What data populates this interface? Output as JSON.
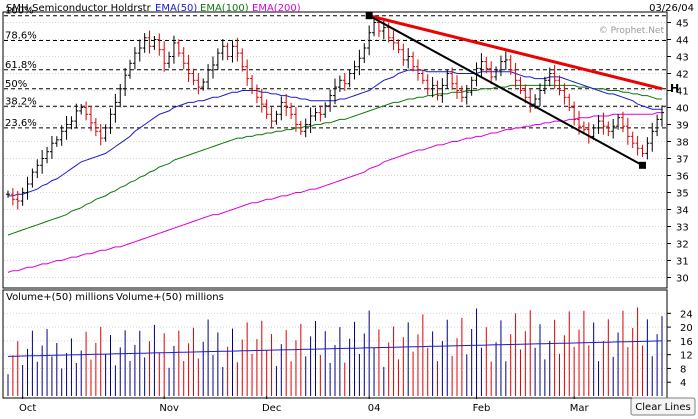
{
  "chart_data": {
    "type": "ohlc",
    "title": "SMH-Semiconductor Holdrstr",
    "date": "03/26/04",
    "watermark": "© Prophet.Net",
    "legend": [
      {
        "label": "EMA(50)",
        "color": "#1c1ccc"
      },
      {
        "label": "EMA(100)",
        "color": "#0a7a0a"
      },
      {
        "label": "EMA(200)",
        "color": "#dd00dd"
      }
    ],
    "price_axis": {
      "min": 29.5,
      "max": 45.5,
      "ticks": [
        30,
        31,
        32,
        33,
        34,
        35,
        36,
        37,
        38,
        39,
        40,
        41,
        42,
        43,
        44,
        45
      ]
    },
    "fib_levels": [
      {
        "label": "100%",
        "value": 45.4
      },
      {
        "label": "78.6%",
        "value": 43.94
      },
      {
        "label": "61.8%",
        "value": 42.22
      },
      {
        "label": "50%",
        "value": 41.1
      },
      {
        "label": "38.2%",
        "value": 40.07
      },
      {
        "label": "23.6%",
        "value": 38.8
      }
    ],
    "x_labels": [
      "Oct",
      "Nov",
      "Dec",
      "04",
      "Feb",
      "Mar"
    ],
    "x_label_bar_index": [
      3,
      32,
      53,
      74,
      96,
      116
    ],
    "close": [
      34.9,
      34.6,
      34.5,
      35.0,
      35.5,
      36.2,
      36.6,
      37.0,
      37.4,
      37.9,
      38.1,
      38.6,
      39.0,
      39.2,
      39.8,
      40.0,
      39.6,
      39.1,
      38.6,
      38.2,
      38.8,
      39.6,
      40.3,
      41.1,
      41.9,
      42.6,
      43.2,
      43.5,
      44.1,
      43.6,
      44.0,
      43.4,
      42.6,
      43.0,
      43.8,
      43.2,
      42.6,
      42.0,
      41.6,
      41.2,
      41.5,
      42.2,
      42.5,
      43.2,
      43.6,
      43.0,
      43.6,
      43.2,
      42.4,
      41.7,
      41.0,
      40.6,
      40.2,
      39.6,
      39.2,
      39.6,
      40.3,
      40.0,
      39.6,
      39.0,
      38.6,
      39.0,
      39.5,
      39.7,
      39.6,
      40.1,
      40.7,
      41.2,
      41.6,
      41.4,
      42.0,
      42.4,
      42.9,
      43.5,
      44.4,
      45.0,
      44.5,
      44.7,
      44.1,
      43.8,
      43.4,
      42.8,
      43.0,
      42.4,
      42.0,
      41.6,
      41.1,
      41.3,
      40.7,
      41.3,
      42.0,
      41.4,
      41.0,
      40.6,
      40.9,
      41.6,
      42.3,
      42.7,
      42.3,
      41.8,
      42.2,
      42.7,
      42.8,
      42.2,
      41.6,
      41.0,
      40.6,
      40.2,
      40.5,
      41.0,
      41.6,
      42.0,
      41.6,
      41.0,
      40.6,
      40.0,
      39.3,
      38.9,
      38.7,
      38.3,
      38.8,
      39.2,
      38.9,
      38.6,
      38.9,
      39.4,
      38.9,
      38.3,
      37.9,
      37.6,
      37.3,
      37.9,
      38.6,
      39.3,
      39.7
    ],
    "ema50": [
      34.8,
      34.8,
      34.9,
      34.9,
      35.0,
      35.1,
      35.2,
      35.4,
      35.5,
      35.7,
      35.8,
      36.0,
      36.2,
      36.4,
      36.6,
      36.8,
      36.9,
      37.0,
      37.1,
      37.2,
      37.3,
      37.5,
      37.7,
      37.9,
      38.1,
      38.3,
      38.6,
      38.8,
      39.0,
      39.2,
      39.4,
      39.6,
      39.7,
      39.8,
      40.0,
      40.1,
      40.2,
      40.3,
      40.3,
      40.4,
      40.4,
      40.5,
      40.6,
      40.6,
      40.7,
      40.8,
      40.9,
      40.9,
      41.0,
      41.0,
      41.0,
      41.0,
      40.9,
      40.9,
      40.8,
      40.8,
      40.7,
      40.7,
      40.6,
      40.6,
      40.5,
      40.5,
      40.4,
      40.4,
      40.4,
      40.4,
      40.4,
      40.4,
      40.5,
      40.5,
      40.6,
      40.7,
      40.8,
      40.9,
      41.0,
      41.2,
      41.4,
      41.6,
      41.7,
      41.8,
      42.0,
      42.1,
      42.2,
      42.2,
      42.2,
      42.2,
      42.1,
      42.1,
      42.1,
      42.1,
      42.1,
      42.1,
      42.0,
      42.0,
      42.0,
      42.0,
      42.0,
      42.1,
      42.1,
      42.1,
      42.1,
      42.1,
      42.1,
      42.1,
      42.0,
      41.9,
      41.8,
      41.8,
      41.7,
      41.7,
      41.7,
      41.8,
      41.8,
      41.8,
      41.7,
      41.6,
      41.5,
      41.4,
      41.3,
      41.2,
      41.1,
      41.0,
      40.9,
      40.8,
      40.8,
      40.7,
      40.6,
      40.5,
      40.4,
      40.2,
      40.1,
      40.0,
      39.9,
      39.9,
      39.9
    ],
    "ema100": [
      32.5,
      32.6,
      32.7,
      32.8,
      32.9,
      33.0,
      33.1,
      33.2,
      33.3,
      33.4,
      33.5,
      33.6,
      33.7,
      33.9,
      34.0,
      34.1,
      34.3,
      34.4,
      34.6,
      34.7,
      34.8,
      35.0,
      35.1,
      35.3,
      35.4,
      35.6,
      35.7,
      35.9,
      36.0,
      36.2,
      36.3,
      36.5,
      36.6,
      36.7,
      36.9,
      37.0,
      37.1,
      37.2,
      37.3,
      37.4,
      37.5,
      37.6,
      37.7,
      37.8,
      37.9,
      38.0,
      38.1,
      38.2,
      38.2,
      38.3,
      38.3,
      38.4,
      38.4,
      38.5,
      38.5,
      38.6,
      38.6,
      38.7,
      38.7,
      38.8,
      38.8,
      38.9,
      38.9,
      39.0,
      39.0,
      39.1,
      39.1,
      39.2,
      39.3,
      39.3,
      39.4,
      39.5,
      39.6,
      39.7,
      39.8,
      39.9,
      40.0,
      40.1,
      40.2,
      40.3,
      40.3,
      40.4,
      40.5,
      40.5,
      40.6,
      40.6,
      40.7,
      40.7,
      40.8,
      40.8,
      40.8,
      40.9,
      40.9,
      40.9,
      41.0,
      41.0,
      41.0,
      41.1,
      41.1,
      41.1,
      41.2,
      41.2,
      41.2,
      41.3,
      41.3,
      41.3,
      41.3,
      41.3,
      41.3,
      41.3,
      41.3,
      41.3,
      41.3,
      41.3,
      41.3,
      41.3,
      41.3,
      41.2,
      41.2,
      41.2,
      41.1,
      41.1,
      41.1,
      41.0,
      41.0,
      41.0,
      40.9,
      40.9,
      40.8,
      40.8,
      40.7,
      40.7,
      40.6,
      40.5,
      40.5
    ],
    "ema200": [
      30.3,
      30.4,
      30.4,
      30.5,
      30.6,
      30.6,
      30.7,
      30.8,
      30.8,
      30.9,
      31.0,
      31.0,
      31.1,
      31.2,
      31.2,
      31.3,
      31.4,
      31.4,
      31.5,
      31.6,
      31.6,
      31.7,
      31.8,
      31.8,
      31.9,
      32.0,
      32.1,
      32.2,
      32.3,
      32.4,
      32.5,
      32.6,
      32.7,
      32.8,
      32.9,
      33.0,
      33.1,
      33.2,
      33.3,
      33.4,
      33.5,
      33.6,
      33.7,
      33.7,
      33.8,
      33.9,
      34.0,
      34.1,
      34.2,
      34.3,
      34.4,
      34.4,
      34.5,
      34.6,
      34.6,
      34.7,
      34.8,
      34.8,
      34.9,
      35.0,
      35.0,
      35.1,
      35.2,
      35.2,
      35.3,
      35.4,
      35.5,
      35.6,
      35.7,
      35.8,
      35.9,
      36.0,
      36.1,
      36.2,
      36.4,
      36.5,
      36.6,
      36.8,
      36.9,
      37.0,
      37.1,
      37.2,
      37.3,
      37.4,
      37.5,
      37.5,
      37.6,
      37.7,
      37.8,
      37.8,
      37.9,
      38.0,
      38.0,
      38.1,
      38.2,
      38.2,
      38.3,
      38.3,
      38.4,
      38.5,
      38.5,
      38.6,
      38.7,
      38.7,
      38.8,
      38.8,
      38.9,
      38.9,
      39.0,
      39.0,
      39.1,
      39.1,
      39.2,
      39.2,
      39.2,
      39.3,
      39.3,
      39.4,
      39.4,
      39.4,
      39.5,
      39.5,
      39.5,
      39.5,
      39.6,
      39.6,
      39.6,
      39.6,
      39.6,
      39.6,
      39.6,
      39.6,
      39.6,
      39.7,
      39.7
    ],
    "trendlines": [
      {
        "name": "red",
        "color": "#ee0000",
        "from": [
          74,
          45.4
        ],
        "to": [
          134,
          41.1
        ]
      },
      {
        "name": "black",
        "color": "#000000",
        "from": [
          74,
          45.4
        ],
        "to": [
          130,
          36.6
        ]
      }
    ],
    "annotation_markers": [
      {
        "bar": 74,
        "price": 45.4
      },
      {
        "bar": 130,
        "price": 36.6
      }
    ],
    "corner_letter": "H",
    "volume": {
      "title": "Volume+(50) millions",
      "title_repeat": "Volume+(50) millions",
      "axis_ticks": [
        4,
        8,
        12,
        16,
        20,
        24
      ],
      "max": 27,
      "volume_ma_start": 11.5,
      "volume_ma_end": 16.0
    },
    "clear_lines_label": "Clear Lines"
  }
}
